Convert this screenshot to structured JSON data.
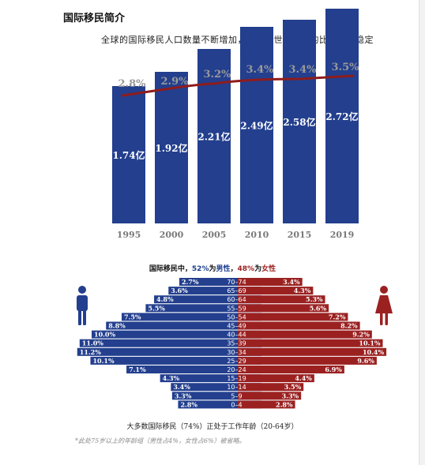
{
  "page": {
    "title": "国际移民简介",
    "subtitle": "全球的国际移民人口数量不断增加，但其占世界人口的比重相对稳定"
  },
  "chart_data": [
    {
      "type": "bar",
      "categories": [
        "1995",
        "2000",
        "2005",
        "2010",
        "2015",
        "2019"
      ],
      "values": [
        1.74,
        1.92,
        2.21,
        2.49,
        2.58,
        2.72
      ],
      "value_labels": [
        "1.74亿",
        "1.92亿",
        "2.21亿",
        "2.49亿",
        "2.58亿",
        "2.72亿"
      ],
      "line_series": {
        "values": [
          2.8,
          2.9,
          3.2,
          3.4,
          3.4,
          3.5
        ],
        "labels": [
          "2.8%",
          "2.9%",
          "3.2%",
          "3.4%",
          "3.4%",
          "3.5%"
        ]
      },
      "colors": {
        "bar": "#233f8e",
        "line": "#8e1c1c",
        "line_label": "#9a9a9a",
        "axis_label": "#7a7a7a"
      }
    },
    {
      "type": "bar",
      "title_parts": {
        "prefix": "国际移民中，",
        "male_pct": "52%",
        "mid": "为",
        "male_word": "男性",
        "sep": "，",
        "female_pct": "48%",
        "mid2": "为",
        "female_word": "女性"
      },
      "age_groups": [
        "70–74",
        "65–69",
        "60–64",
        "55–59",
        "50–54",
        "45–49",
        "40–44",
        "35–39",
        "30–34",
        "25–29",
        "20–24",
        "15–19",
        "10–14",
        "5–9",
        "0–4"
      ],
      "series": [
        {
          "name": "男性",
          "values": [
            2.7,
            3.6,
            4.8,
            5.5,
            7.5,
            8.8,
            10.0,
            11.0,
            11.2,
            10.1,
            7.1,
            4.3,
            3.4,
            3.3,
            2.8
          ],
          "labels": [
            "2.7%",
            "3.6%",
            "4.8%",
            "5.5%",
            "7.5%",
            "8.8%",
            "10.0%",
            "11.0%",
            "11.2%",
            "10.1%",
            "7.1%",
            "4.3%",
            "3.4%",
            "3.3%",
            "2.8%"
          ]
        },
        {
          "name": "女性",
          "values": [
            3.4,
            4.3,
            5.3,
            5.6,
            7.2,
            8.2,
            9.2,
            10.1,
            10.4,
            9.6,
            6.9,
            4.4,
            3.5,
            3.3,
            2.8
          ],
          "labels": [
            "3.4%",
            "4.3%",
            "5.3%",
            "5.6%",
            "7.2%",
            "8.2%",
            "9.2%",
            "10.1%",
            "10.4%",
            "9.6%",
            "6.9%",
            "4.4%",
            "3.5%",
            "3.3%",
            "2.8%"
          ]
        }
      ],
      "caption": "大多数国际移民（74%）正处于工作年龄（20-64岁）",
      "colors": {
        "male": "#233f8e",
        "female": "#9b2121",
        "age_label": "#ffffff"
      },
      "icons": [
        "male-person-icon",
        "female-person-icon"
      ]
    }
  ],
  "footnote": "*此处75岁以上的年龄组（男性占4%，女性占6%）被省略。"
}
